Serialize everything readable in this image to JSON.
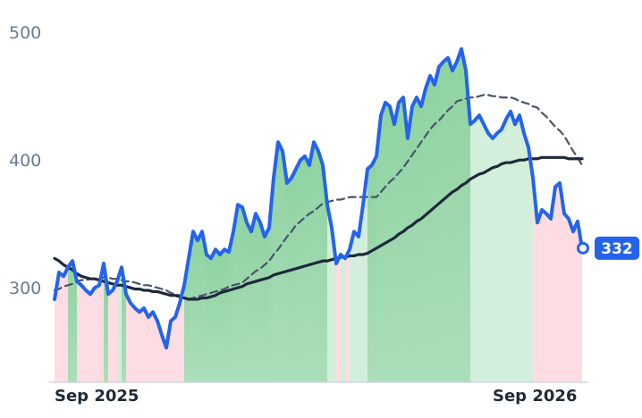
{
  "chart_data": {
    "type": "line",
    "categories": [
      "Sep 2025",
      null,
      null,
      null,
      null,
      null,
      null,
      null,
      null,
      null,
      null,
      null,
      null,
      null,
      null,
      null,
      null,
      null,
      null,
      null,
      null,
      null,
      null,
      null,
      null,
      null,
      null,
      null,
      null,
      null,
      null,
      null,
      null,
      null,
      null,
      null,
      null,
      null,
      null,
      null,
      null,
      null,
      null,
      null,
      null,
      null,
      null,
      null,
      null,
      null,
      null,
      null,
      null,
      null,
      null,
      null,
      null,
      null,
      null,
      null,
      null,
      null,
      null,
      null,
      null,
      null,
      null,
      null,
      null,
      null,
      null,
      null,
      null,
      null,
      null,
      null,
      null,
      null,
      null,
      null,
      null,
      null,
      null,
      null,
      null,
      null,
      null,
      null,
      null,
      null,
      null,
      null,
      null,
      null,
      null,
      null,
      null,
      null,
      "Sep 2026",
      null,
      null,
      null,
      null,
      null,
      null,
      null,
      null,
      null,
      null,
      null,
      null,
      null,
      null,
      null,
      null,
      null,
      null,
      null,
      null
    ],
    "series": [
      {
        "color": "#2563eb",
        "values": [
          292,
          313,
          310,
          317,
          322,
          306,
          303,
          299,
          296,
          301,
          303,
          320,
          296,
          299,
          306,
          317,
          296,
          289,
          285,
          282,
          285,
          278,
          282,
          275,
          264,
          254,
          275,
          278,
          289,
          303,
          324,
          345,
          338,
          345,
          327,
          324,
          331,
          327,
          331,
          329,
          345,
          366,
          364,
          352,
          345,
          359,
          352,
          341,
          348,
          387,
          415,
          408,
          383,
          387,
          394,
          401,
          404,
          397,
          415,
          408,
          397,
          366,
          348,
          320,
          327,
          324,
          331,
          345,
          341,
          366,
          394,
          397,
          404,
          436,
          446,
          443,
          429,
          446,
          450,
          418,
          443,
          450,
          443,
          457,
          467,
          460,
          474,
          478,
          481,
          471,
          478,
          488,
          471,
          429,
          432,
          436,
          429,
          422,
          418,
          422,
          425,
          433,
          439,
          429,
          436,
          422,
          411,
          387,
          352,
          362,
          359,
          355,
          380,
          383,
          359,
          355,
          345,
          353,
          332
        ]
      },
      {
        "color": "#1e293b",
        "values": [
          324,
          322,
          319,
          317,
          315,
          312,
          310,
          309,
          308,
          308,
          307,
          306,
          305,
          304,
          303,
          303,
          302,
          301,
          300,
          300,
          299,
          299,
          298,
          298,
          297,
          296,
          295,
          295,
          294,
          293,
          292,
          292,
          292,
          293,
          293,
          294,
          295,
          297,
          298,
          299,
          300,
          301,
          302,
          304,
          305,
          306,
          307,
          308,
          309,
          311,
          312,
          313,
          314,
          315,
          316,
          317,
          318,
          319,
          320,
          321,
          322,
          322,
          323,
          324,
          325,
          325,
          326,
          326,
          327,
          327,
          328,
          330,
          332,
          334,
          336,
          338,
          340,
          343,
          345,
          348,
          350,
          353,
          355,
          358,
          361,
          364,
          367,
          370,
          373,
          376,
          378,
          381,
          383,
          386,
          388,
          390,
          391,
          393,
          395,
          396,
          398,
          399,
          399,
          400,
          401,
          401,
          402,
          402,
          402,
          403,
          403,
          403,
          403,
          403,
          403,
          402,
          402,
          402,
          402
        ]
      },
      {
        "color": "#475569",
        "dash": true,
        "values": [
          299,
          300,
          302,
          303,
          304,
          306,
          307,
          307,
          308,
          308,
          308,
          309,
          309,
          308,
          308,
          307,
          306,
          306,
          305,
          304,
          303,
          303,
          302,
          301,
          300,
          299,
          297,
          296,
          295,
          293,
          292,
          293,
          294,
          295,
          296,
          297,
          298,
          299,
          300,
          302,
          303,
          304,
          305,
          308,
          311,
          314,
          316,
          319,
          322,
          327,
          331,
          336,
          341,
          345,
          350,
          353,
          356,
          359,
          361,
          364,
          367,
          368,
          369,
          370,
          370,
          371,
          372,
          372,
          372,
          372,
          372,
          372,
          372,
          376,
          380,
          384,
          387,
          391,
          395,
          400,
          405,
          410,
          415,
          420,
          425,
          429,
          432,
          436,
          440,
          443,
          447,
          448,
          449,
          450,
          450,
          451,
          452,
          452,
          451,
          451,
          450,
          450,
          450,
          449,
          447,
          446,
          445,
          443,
          442,
          438,
          435,
          431,
          427,
          424,
          420,
          414,
          408,
          403,
          397
        ]
      }
    ],
    "fill_colors": {
      "strong": "#8fd3a2",
      "weak": "#d3eedb",
      "below": "#fddde3"
    },
    "ylim": [
      227,
      512
    ],
    "yticks": [
      300,
      400,
      500
    ],
    "last_value_color": "#2563eb"
  }
}
